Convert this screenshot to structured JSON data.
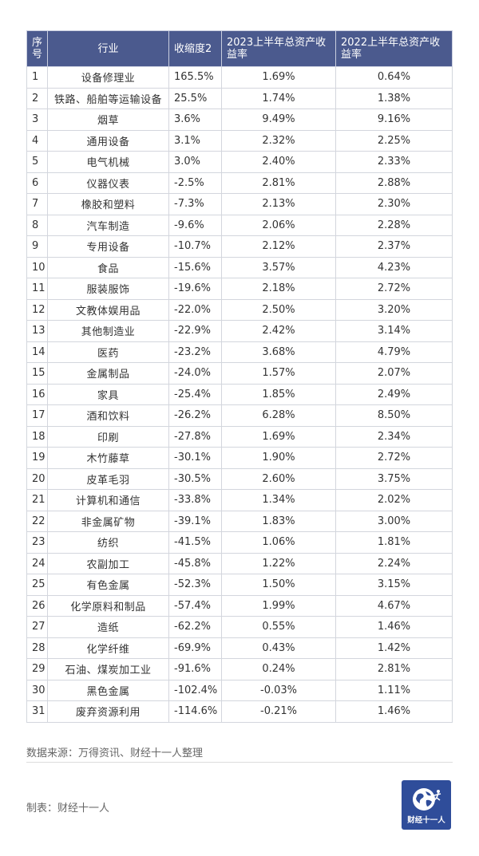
{
  "headers": [
    "序号",
    "行业",
    "收缩度2",
    "2023上半年总资产收益率",
    "2022上半年总资产收益率"
  ],
  "rows": [
    [
      "1",
      "设备修理业",
      "165.5%",
      "1.69%",
      "0.64%"
    ],
    [
      "2",
      "铁路、船舶等运输设备",
      "25.5%",
      "1.74%",
      "1.38%"
    ],
    [
      "3",
      "烟草",
      "3.6%",
      "9.49%",
      "9.16%"
    ],
    [
      "4",
      "通用设备",
      "3.1%",
      "2.32%",
      "2.25%"
    ],
    [
      "5",
      "电气机械",
      "3.0%",
      "2.40%",
      "2.33%"
    ],
    [
      "6",
      "仪器仪表",
      "-2.5%",
      "2.81%",
      "2.88%"
    ],
    [
      "7",
      "橡胶和塑料",
      "-7.3%",
      "2.13%",
      "2.30%"
    ],
    [
      "8",
      "汽车制造",
      "-9.6%",
      "2.06%",
      "2.28%"
    ],
    [
      "9",
      "专用设备",
      "-10.7%",
      "2.12%",
      "2.37%"
    ],
    [
      "10",
      "食品",
      "-15.6%",
      "3.57%",
      "4.23%"
    ],
    [
      "11",
      "服装服饰",
      "-19.6%",
      "2.18%",
      "2.72%"
    ],
    [
      "12",
      "文教体娱用品",
      "-22.0%",
      "2.50%",
      "3.20%"
    ],
    [
      "13",
      "其他制造业",
      "-22.9%",
      "2.42%",
      "3.14%"
    ],
    [
      "14",
      "医药",
      "-23.2%",
      "3.68%",
      "4.79%"
    ],
    [
      "15",
      "金属制品",
      "-24.0%",
      "1.57%",
      "2.07%"
    ],
    [
      "16",
      "家具",
      "-25.4%",
      "1.85%",
      "2.49%"
    ],
    [
      "17",
      "酒和饮料",
      "-26.2%",
      "6.28%",
      "8.50%"
    ],
    [
      "18",
      "印刷",
      "-27.8%",
      "1.69%",
      "2.34%"
    ],
    [
      "19",
      "木竹藤草",
      "-30.1%",
      "1.90%",
      "2.72%"
    ],
    [
      "20",
      "皮革毛羽",
      "-30.5%",
      "2.60%",
      "3.75%"
    ],
    [
      "21",
      "计算机和通信",
      "-33.8%",
      "1.34%",
      "2.02%"
    ],
    [
      "22",
      "非金属矿物",
      "-39.1%",
      "1.83%",
      "3.00%"
    ],
    [
      "23",
      "纺织",
      "-41.5%",
      "1.06%",
      "1.81%"
    ],
    [
      "24",
      "农副加工",
      "-45.8%",
      "1.22%",
      "2.24%"
    ],
    [
      "25",
      "有色金属",
      "-52.3%",
      "1.50%",
      "3.15%"
    ],
    [
      "26",
      "化学原料和制品",
      "-57.4%",
      "1.99%",
      "4.67%"
    ],
    [
      "27",
      "造纸",
      "-62.2%",
      "0.55%",
      "1.46%"
    ],
    [
      "28",
      "化学纤维",
      "-69.9%",
      "0.43%",
      "1.42%"
    ],
    [
      "29",
      "石油、煤炭加工业",
      "-91.6%",
      "0.24%",
      "2.81%"
    ],
    [
      "30",
      "黑色金属",
      "-102.4%",
      "-0.03%",
      "1.11%"
    ],
    [
      "31",
      "废弃资源利用",
      "-114.6%",
      "-0.21%",
      "1.46%"
    ]
  ],
  "source": "数据来源：万得资讯、财经十一人整理",
  "maker": "制表：财经十一人",
  "logo": {
    "text": "财经十一人",
    "icon": "globe-icon",
    "color": "#2f4d9a"
  },
  "header_color": "#4b5a8e"
}
